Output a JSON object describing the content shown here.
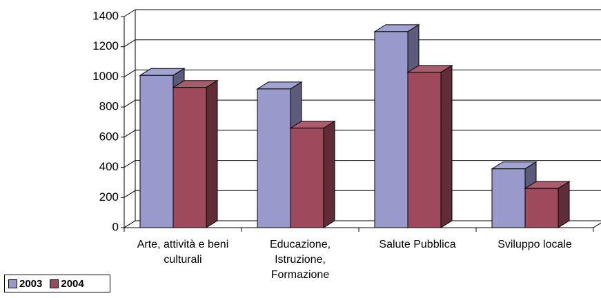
{
  "chart_data": {
    "type": "bar3d",
    "categories": [
      "Arte, attività e beni culturali",
      "Educazione, Istruzione, Formazione",
      "Salute Pubblica",
      "Sviluppo locale"
    ],
    "series": [
      {
        "name": "2003",
        "color": "#9999cc",
        "values": [
          1010,
          920,
          1300,
          390
        ]
      },
      {
        "name": "2004",
        "color": "#9e4a5c",
        "values": [
          930,
          660,
          1030,
          260
        ]
      }
    ],
    "ylim": [
      0,
      1400
    ],
    "yticks": [
      0,
      200,
      400,
      600,
      800,
      1000,
      1200,
      1400
    ],
    "grid": true,
    "legend": "bottom-left"
  }
}
